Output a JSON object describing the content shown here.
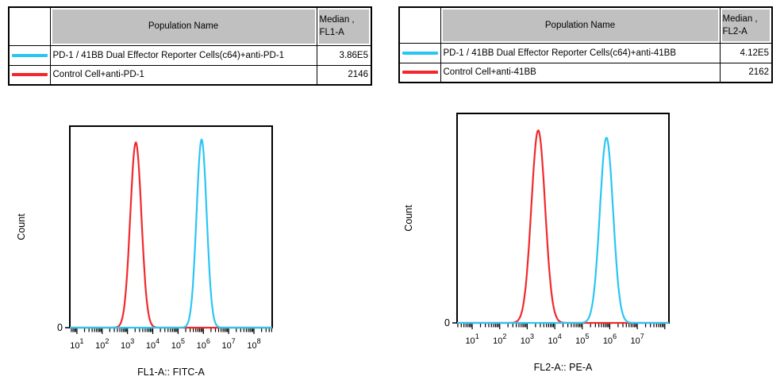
{
  "colors": {
    "reporter_series": "#2bc5f4",
    "control_series": "#f2282c",
    "table_header_bg": "#c0c0c0",
    "axis": "#000000"
  },
  "tables": {
    "left": {
      "header": {
        "population": "Population Name",
        "median_line1": "Median ,",
        "median_line2": "FL1-A"
      },
      "rows": [
        {
          "swatch_color": "#2bc5f4",
          "name": "PD-1 / 41BB Dual Effector Reporter Cells(c64)+anti-PD-1",
          "median": "3.86E5"
        },
        {
          "swatch_color": "#f2282c",
          "name": "Control Cell+anti-PD-1",
          "median": "2146"
        }
      ]
    },
    "right": {
      "header": {
        "population": "Population Name",
        "median_line1": "Median ,",
        "median_line2": "FL2-A"
      },
      "rows": [
        {
          "swatch_color": "#2bc5f4",
          "name": "PD-1 / 41BB Dual Effector Reporter Cells(c64)+anti-41BB",
          "median": "4.12E5"
        },
        {
          "swatch_color": "#f2282c",
          "name": "Control Cell+anti-41BB",
          "median": "2162"
        }
      ]
    }
  },
  "chart_data": [
    {
      "type": "line",
      "subtype": "flow-cytometry-histogram-overlay",
      "title": "",
      "xlabel": "FL1-A:: FITC-A",
      "ylabel": "Count",
      "y_axis_zero_label": "0",
      "x_scale": "log",
      "x_log_range": [
        0.72,
        8.72
      ],
      "x_tick_decades": [
        1,
        2,
        3,
        4,
        5,
        6,
        7,
        8
      ],
      "grid": false,
      "legend_position": "table-above",
      "series": [
        {
          "name": "Control Cell+anti-PD-1",
          "color": "#f2282c",
          "median": "2146",
          "peak_log_x": 3.33,
          "sigma_log": 0.22,
          "peak_height_frac": 0.92
        },
        {
          "name": "PD-1 / 41BB Dual Effector Reporter Cells(c64)+anti-PD-1",
          "color": "#2bc5f4",
          "median": "3.86E5",
          "peak_log_x": 5.93,
          "sigma_log": 0.2,
          "peak_height_frac": 0.935
        }
      ]
    },
    {
      "type": "line",
      "subtype": "flow-cytometry-histogram-overlay",
      "title": "",
      "xlabel": "FL2-A:: PE-A",
      "ylabel": "Count",
      "y_axis_zero_label": "0",
      "x_scale": "log",
      "x_log_range": [
        0.45,
        8.15
      ],
      "x_tick_decades": [
        1,
        2,
        3,
        4,
        5,
        6,
        7
      ],
      "grid": false,
      "legend_position": "table-above",
      "series": [
        {
          "name": "Control Cell+anti-41BB",
          "color": "#f2282c",
          "median": "2162",
          "peak_log_x": 3.4,
          "sigma_log": 0.25,
          "peak_height_frac": 0.92
        },
        {
          "name": "PD-1 / 41BB Dual Effector Reporter Cells(c64)+anti-41BB",
          "color": "#2bc5f4",
          "median": "4.12E5",
          "peak_log_x": 5.88,
          "sigma_log": 0.24,
          "peak_height_frac": 0.885
        }
      ]
    }
  ]
}
